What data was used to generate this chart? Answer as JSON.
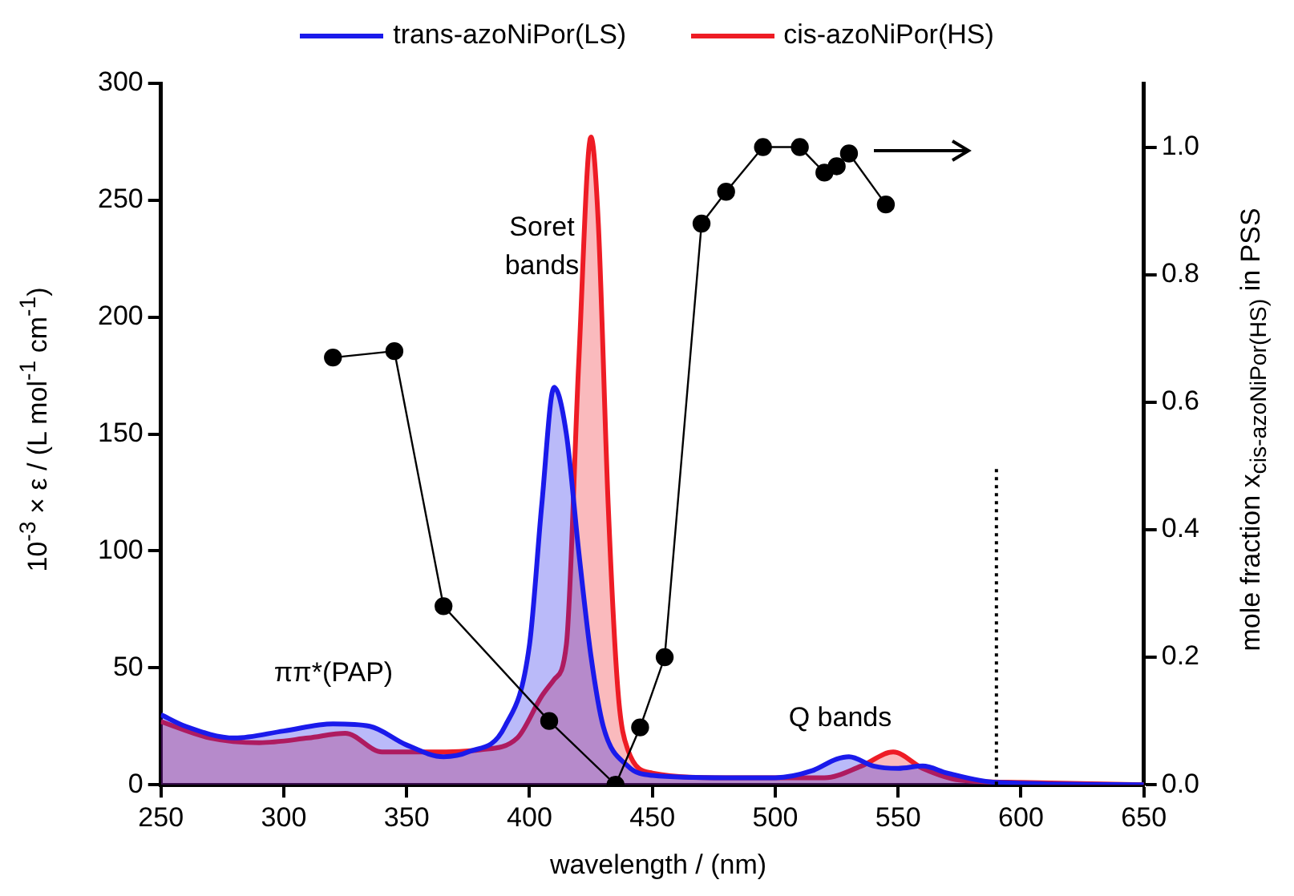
{
  "chart_data": {
    "type": "line",
    "xlabel": "wavelength / (nm)",
    "ylabel": "10$^{-3}$ × ε / (L mol$^{-1}$ cm$^{-1}$)",
    "y2label": "mole fraction  x$_{cis-azoNiPor(HS)}$ in PSS",
    "xlim": [
      250,
      650
    ],
    "xticks": [
      250,
      300,
      350,
      400,
      450,
      500,
      550,
      600,
      650
    ],
    "ylim": [
      0,
      300
    ],
    "yticks": [
      0,
      50,
      100,
      150,
      200,
      250,
      300
    ],
    "y2lim": [
      0,
      1.1
    ],
    "y2ticks": [
      {
        "value": 0,
        "label": "0.0"
      },
      0.2,
      0.4,
      0.6,
      0.8,
      {
        "value": 1,
        "label": "1.0"
      }
    ],
    "legend": "top",
    "series": [
      {
        "name": "trans-azoNiPor(LS)",
        "type": "area",
        "color": "#1a1aeb",
        "x": [
          250,
          260,
          280,
          300,
          320,
          335,
          350,
          365,
          375,
          390,
          400,
          405,
          410,
          415,
          420,
          425,
          430,
          440,
          450,
          480,
          500,
          515,
          525,
          530,
          540,
          550,
          560,
          570,
          590,
          650
        ],
        "values": [
          30,
          25,
          20,
          23,
          26,
          25,
          17,
          12,
          14,
          25,
          60,
          120,
          170,
          150,
          100,
          55,
          25,
          8,
          4,
          3,
          3,
          6,
          11,
          12,
          8,
          7,
          8,
          5,
          1,
          0
        ]
      },
      {
        "name": "cis-azoNiPor(HS)",
        "type": "area",
        "color": "#ee1c25",
        "x": [
          250,
          270,
          290,
          310,
          325,
          340,
          360,
          380,
          395,
          405,
          410,
          415,
          420,
          425,
          428,
          432,
          436,
          440,
          450,
          480,
          520,
          535,
          548,
          560,
          575,
          600,
          650
        ],
        "values": [
          27,
          20,
          18,
          20,
          22,
          14,
          14,
          15,
          20,
          38,
          45,
          60,
          180,
          277,
          240,
          120,
          40,
          15,
          5,
          3,
          3,
          8,
          14,
          7,
          2,
          1,
          0
        ]
      },
      {
        "type": "line",
        "axis": "y2",
        "color": "#000000",
        "marker": "circle",
        "x": [
          320,
          345,
          365,
          408,
          435,
          445,
          455,
          470,
          480,
          495,
          510,
          520,
          525,
          530,
          545
        ],
        "values": [
          0.67,
          0.68,
          0.28,
          0.1,
          0,
          0.09,
          0.2,
          0.88,
          0.93,
          1.0,
          1.0,
          0.96,
          0.97,
          0.99,
          0.91
        ]
      }
    ],
    "ref_lines": [
      {
        "axis": "x",
        "value": 590,
        "line_style": "dotted",
        "color": "#000000"
      }
    ],
    "annotations": [
      "Soret bands",
      "Q bands",
      "ππ*(PAP)"
    ]
  }
}
